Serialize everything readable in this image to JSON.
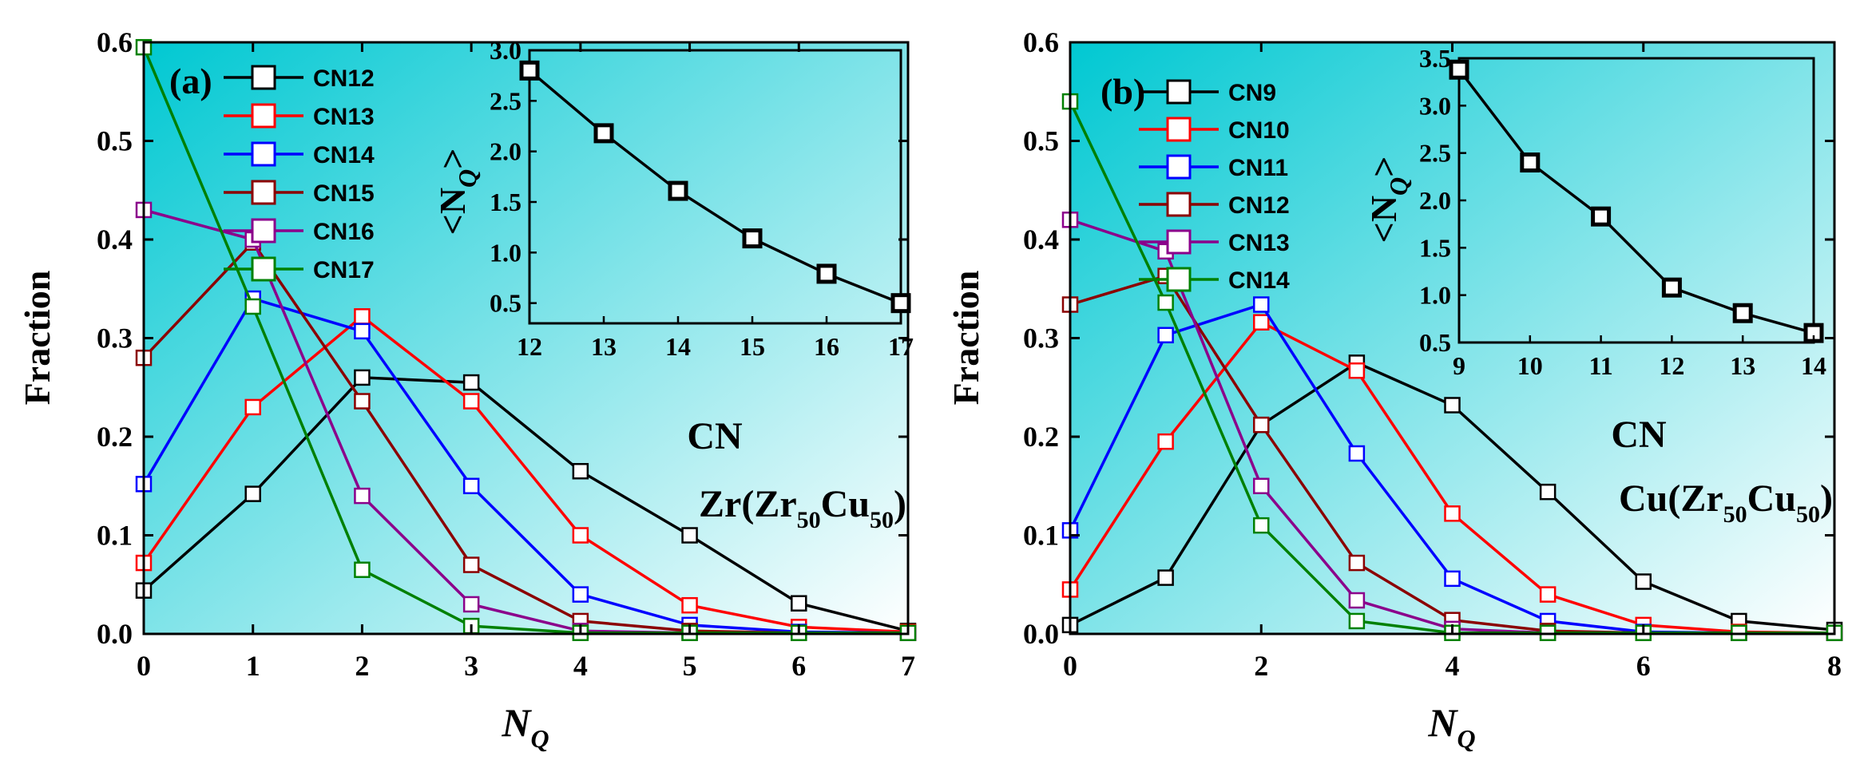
{
  "figure": {
    "background": "#ffffff",
    "plot_gradient_from": "#00c8d2",
    "plot_gradient_to": "#ffffff"
  },
  "chart_data": [
    {
      "type": "line",
      "panel_label": "(a)",
      "title": "",
      "xlabel": "N",
      "xlabel_sub": "Q",
      "ylabel": "Fraction",
      "xlim": [
        0,
        7
      ],
      "ylim": [
        0,
        0.6
      ],
      "xticks": [
        "0",
        "1",
        "2",
        "3",
        "4",
        "5",
        "6",
        "7"
      ],
      "yticks": [
        "0.0",
        "0.1",
        "0.2",
        "0.3",
        "0.4",
        "0.5",
        "0.6"
      ],
      "annotation": {
        "elem": "Zr(Zr",
        "sub1": "50",
        "mid": "Cu",
        "sub2": "50",
        "end": ")"
      },
      "legend_position": "top-left",
      "series": [
        {
          "name": "CN12",
          "color": "#000000",
          "x": [
            0,
            1,
            2,
            3,
            4,
            5,
            6,
            7
          ],
          "values": [
            0.044,
            0.142,
            0.26,
            0.255,
            0.165,
            0.1,
            0.031,
            0.003
          ]
        },
        {
          "name": "CN13",
          "color": "#ff0000",
          "x": [
            0,
            1,
            2,
            3,
            4,
            5,
            6,
            7
          ],
          "values": [
            0.072,
            0.23,
            0.322,
            0.236,
            0.1,
            0.029,
            0.007,
            0.002
          ]
        },
        {
          "name": "CN14",
          "color": "#0000ff",
          "x": [
            0,
            1,
            2,
            3,
            4,
            5,
            6,
            7
          ],
          "values": [
            0.152,
            0.34,
            0.307,
            0.15,
            0.04,
            0.009,
            0.002,
            0.001
          ]
        },
        {
          "name": "CN15",
          "color": "#8b0000",
          "x": [
            0,
            1,
            2,
            3,
            4,
            5,
            6,
            7
          ],
          "values": [
            0.28,
            0.397,
            0.236,
            0.07,
            0.013,
            0.003,
            0.001,
            0.001
          ]
        },
        {
          "name": "CN16",
          "color": "#8b008b",
          "x": [
            0,
            1,
            2,
            3,
            4,
            5,
            6,
            7
          ],
          "values": [
            0.43,
            0.4,
            0.14,
            0.03,
            0.003,
            0.001,
            0.001,
            0.001
          ]
        },
        {
          "name": "CN17",
          "color": "#008000",
          "x": [
            0,
            1,
            2,
            3,
            4,
            5,
            6,
            7
          ],
          "values": [
            0.595,
            0.332,
            0.065,
            0.008,
            0.001,
            0.001,
            0.001,
            0.001
          ]
        }
      ],
      "inset": {
        "type": "line",
        "xlabel": "CN",
        "ylabel": "<N",
        "ylabel_sub": "Q",
        "ylabel_end": ">",
        "xlim": [
          12,
          17
        ],
        "ylim": [
          0.3,
          3.0
        ],
        "xticks": [
          "12",
          "13",
          "14",
          "15",
          "16",
          "17"
        ],
        "yticks": [
          "0.5",
          "1.0",
          "1.5",
          "2.0",
          "2.5",
          "3.0"
        ],
        "x": [
          12,
          13,
          14,
          15,
          16,
          17
        ],
        "values": [
          2.8,
          2.18,
          1.61,
          1.14,
          0.79,
          0.5
        ]
      }
    },
    {
      "type": "line",
      "panel_label": "(b)",
      "title": "",
      "xlabel": "N",
      "xlabel_sub": "Q",
      "ylabel": "Fraction",
      "xlim": [
        0,
        8
      ],
      "ylim": [
        0,
        0.6
      ],
      "xticks": [
        "0",
        "2",
        "4",
        "6",
        "8"
      ],
      "yticks": [
        "0.0",
        "0.1",
        "0.2",
        "0.3",
        "0.4",
        "0.5",
        "0.6"
      ],
      "annotation": {
        "elem": "Cu(Zr",
        "sub1": "50",
        "mid": "Cu",
        "sub2": "50",
        "end": ")"
      },
      "legend_position": "top-left",
      "series": [
        {
          "name": "CN9",
          "color": "#000000",
          "x": [
            0,
            1,
            2,
            3,
            4,
            5,
            6,
            7,
            8
          ],
          "values": [
            0.009,
            0.057,
            0.212,
            0.275,
            0.232,
            0.144,
            0.053,
            0.013,
            0.004
          ]
        },
        {
          "name": "CN10",
          "color": "#ff0000",
          "x": [
            0,
            1,
            2,
            3,
            4,
            5,
            6,
            7,
            8
          ],
          "values": [
            0.045,
            0.195,
            0.316,
            0.267,
            0.122,
            0.04,
            0.009,
            0.002,
            0.001
          ]
        },
        {
          "name": "CN11",
          "color": "#0000ff",
          "x": [
            0,
            1,
            2,
            3,
            4,
            5,
            6,
            7,
            8
          ],
          "values": [
            0.105,
            0.303,
            0.334,
            0.183,
            0.056,
            0.013,
            0.002,
            0.001,
            0.001
          ]
        },
        {
          "name": "CN12",
          "color": "#8b0000",
          "x": [
            0,
            1,
            2,
            3,
            4,
            5,
            6,
            7,
            8
          ],
          "values": [
            0.334,
            0.363,
            0.212,
            0.072,
            0.014,
            0.003,
            0.001,
            0.001,
            0.001
          ]
        },
        {
          "name": "CN13",
          "color": "#8b008b",
          "x": [
            0,
            1,
            2,
            3,
            4,
            5,
            6,
            7,
            8
          ],
          "values": [
            0.42,
            0.388,
            0.15,
            0.034,
            0.005,
            0.001,
            0.001,
            0.001,
            0.001
          ]
        },
        {
          "name": "CN14",
          "color": "#008000",
          "x": [
            0,
            1,
            2,
            3,
            4,
            5,
            6,
            7,
            8
          ],
          "values": [
            0.54,
            0.336,
            0.11,
            0.013,
            0.001,
            0.001,
            0.001,
            0.001,
            0.001
          ]
        }
      ],
      "inset": {
        "type": "line",
        "xlabel": "CN",
        "ylabel": "<N",
        "ylabel_sub": "Q",
        "ylabel_end": ">",
        "xlim": [
          9,
          14
        ],
        "ylim": [
          0.5,
          3.5
        ],
        "xticks": [
          "9",
          "10",
          "11",
          "12",
          "13",
          "14"
        ],
        "yticks": [
          "0.5",
          "1.0",
          "1.5",
          "2.0",
          "2.5",
          "3.0",
          "3.5"
        ],
        "x": [
          9,
          10,
          11,
          12,
          13,
          14
        ],
        "values": [
          3.38,
          2.4,
          1.83,
          1.08,
          0.81,
          0.6
        ]
      }
    }
  ]
}
